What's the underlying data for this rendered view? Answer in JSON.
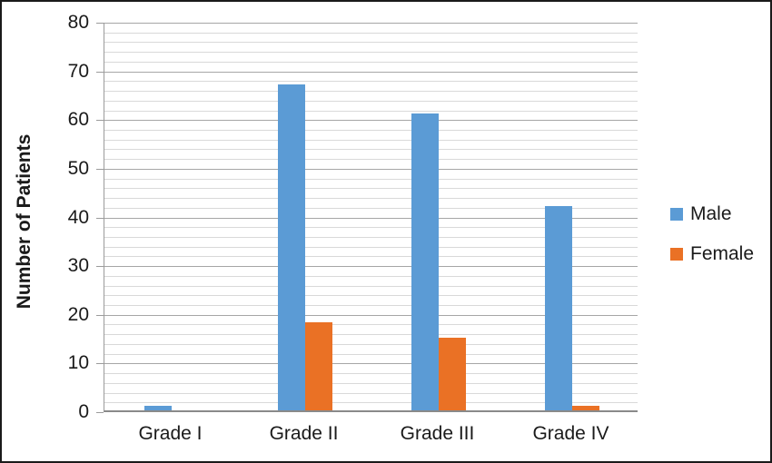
{
  "chart_data": {
    "type": "bar",
    "title": "",
    "categories": [
      "Grade I",
      "Grade II",
      "Grade III",
      "Grade IV"
    ],
    "series": [
      {
        "name": "Male",
        "color": "#5B9BD5",
        "values": [
          1,
          67,
          61,
          42
        ]
      },
      {
        "name": "Female",
        "color": "#EA7125",
        "values": [
          0,
          18,
          15,
          1
        ]
      }
    ],
    "xlabel": "",
    "ylabel": "Number of Patients",
    "ylim": [
      0,
      80
    ],
    "y_major_step": 10,
    "y_minor_step": 2,
    "y_tick_labels": [
      "0",
      "10",
      "20",
      "30",
      "40",
      "50",
      "60",
      "70",
      "80"
    ],
    "grid": "horizontal major and minor gridlines, no vertical gridlines",
    "legend_position": "right",
    "plot_background": "#FFFFFF"
  },
  "legend": {
    "items": [
      {
        "label": "Male",
        "color": "#5B9BD5"
      },
      {
        "label": "Female",
        "color": "#EA7125"
      }
    ]
  },
  "colors": {
    "male_bar": "#5B9BD5",
    "female_bar": "#EA7125",
    "major_gridline": "#A6A6A6",
    "minor_gridline": "#D9D9D9",
    "axis_line": "#8A8A8A",
    "text": "#1A1A1A",
    "background": "#FFFFFF",
    "frame_border": "#1A1A1A"
  }
}
